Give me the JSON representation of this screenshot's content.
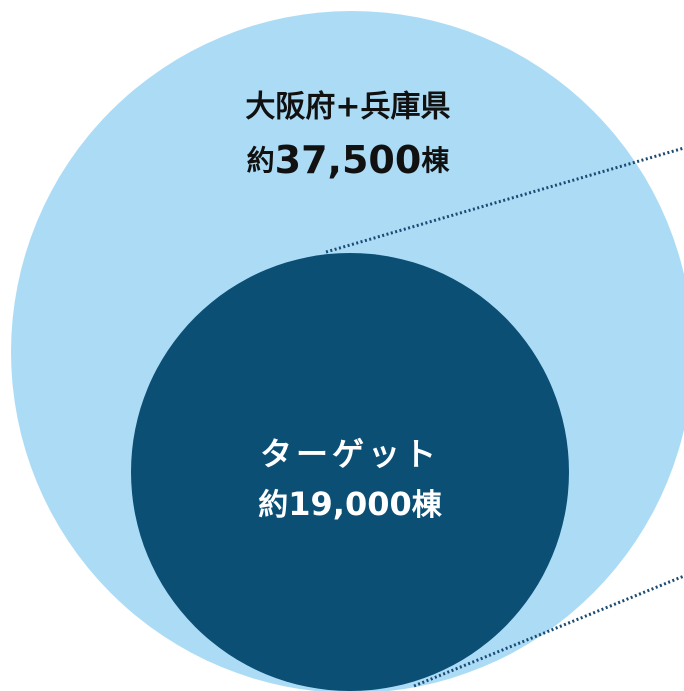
{
  "outer": {
    "label": "大阪府+兵庫県",
    "prefix": "約",
    "number": "37,500",
    "unit": "棟"
  },
  "inner": {
    "label": "ターゲット",
    "prefix": "約",
    "number": "19,000",
    "unit": "棟"
  }
}
